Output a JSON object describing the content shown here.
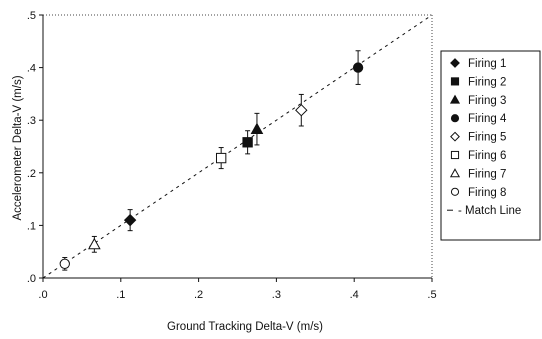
{
  "chart_data": {
    "type": "scatter",
    "title": "",
    "xlabel": "Ground Tracking Delta-V (m/s)",
    "ylabel": "Accelerometer Delta-V (m/s)",
    "xlim": [
      0,
      0.5
    ],
    "ylim": [
      0,
      0.5
    ],
    "x_ticks": [
      {
        "value": 0.0,
        "label": ".0"
      },
      {
        "value": 0.1,
        "label": ".1"
      },
      {
        "value": 0.2,
        "label": ".2"
      },
      {
        "value": 0.3,
        "label": ".3"
      },
      {
        "value": 0.4,
        "label": ".4"
      },
      {
        "value": 0.5,
        "label": ".5"
      }
    ],
    "y_ticks": [
      {
        "value": 0.0,
        "label": ".0"
      },
      {
        "value": 0.1,
        "label": ".1"
      },
      {
        "value": 0.2,
        "label": ".2"
      },
      {
        "value": 0.3,
        "label": ".3"
      },
      {
        "value": 0.4,
        "label": ".4"
      },
      {
        "value": 0.5,
        "label": ".5"
      }
    ],
    "grid": false,
    "legend_position": "right",
    "series": [
      {
        "name": "Firing 1",
        "marker": "diamond-filled",
        "x": 0.112,
        "y": 0.11,
        "y_err": 0.02
      },
      {
        "name": "Firing 2",
        "marker": "square-filled",
        "x": 0.263,
        "y": 0.258,
        "y_err": 0.022
      },
      {
        "name": "Firing 3",
        "marker": "triangle-filled",
        "x": 0.275,
        "y": 0.283,
        "y_err": 0.03
      },
      {
        "name": "Firing 4",
        "marker": "circle-filled",
        "x": 0.405,
        "y": 0.4,
        "y_err": 0.032
      },
      {
        "name": "Firing 5",
        "marker": "diamond-open",
        "x": 0.332,
        "y": 0.319,
        "y_err": 0.03
      },
      {
        "name": "Firing 6",
        "marker": "square-open",
        "x": 0.229,
        "y": 0.228,
        "y_err": 0.02
      },
      {
        "name": "Firing 7",
        "marker": "triangle-open",
        "x": 0.066,
        "y": 0.064,
        "y_err": 0.015
      },
      {
        "name": "Firing 8",
        "marker": "circle-open",
        "x": 0.028,
        "y": 0.027,
        "y_err": 0.012
      }
    ],
    "match_line": {
      "name": "Match Line",
      "legend_text": "- Match Line",
      "x": [
        0.0,
        0.5
      ],
      "y": [
        0.0,
        0.5
      ],
      "style": "dashed"
    }
  }
}
